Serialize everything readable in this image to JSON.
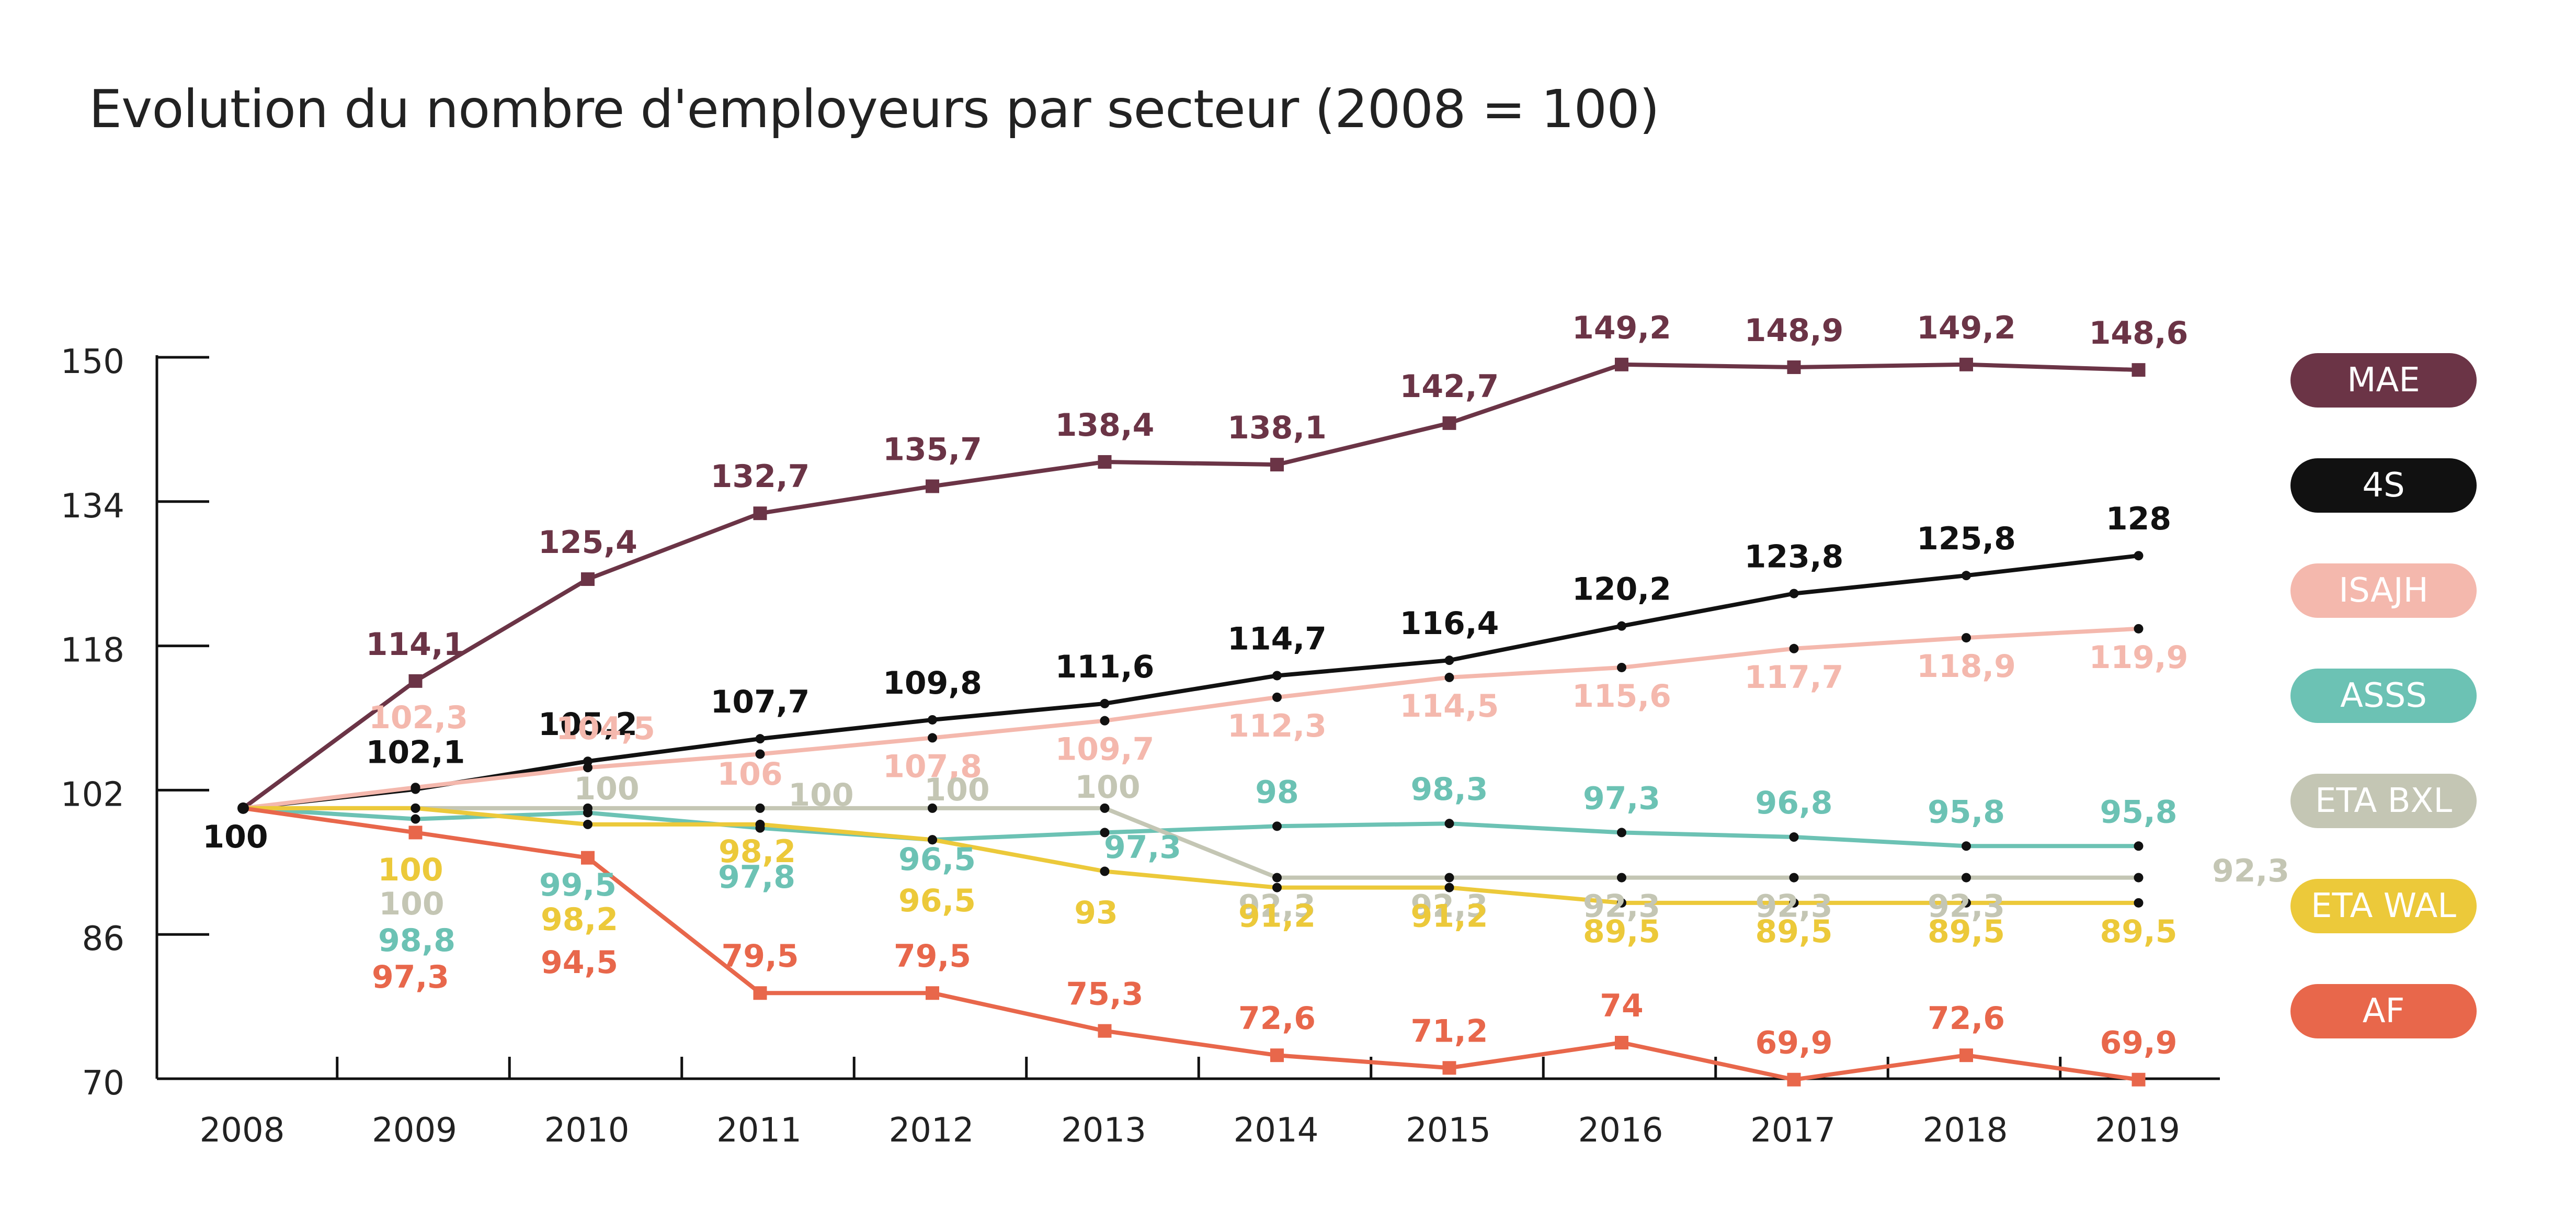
{
  "chart_data": {
    "type": "line",
    "title": "Evolution du nombre d'employeurs par secteur (2008 = 100)",
    "xlabel": "",
    "ylabel": "",
    "x": [
      "2008",
      "2009",
      "2010",
      "2011",
      "2012",
      "2013",
      "2014",
      "2015",
      "2016",
      "2017",
      "2018",
      "2019"
    ],
    "ylim": [
      70,
      150
    ],
    "yticks": [
      "150",
      "134",
      "118",
      "102",
      "86",
      "70"
    ],
    "start_label": "100",
    "grid": false,
    "legend_position": "right",
    "series": [
      {
        "name": "MAE",
        "color": "#6b3446",
        "marker": "square",
        "values": [
          100,
          114.1,
          125.4,
          132.7,
          135.7,
          138.4,
          138.1,
          142.7,
          149.2,
          148.9,
          149.2,
          148.6
        ],
        "labels": [
          "",
          "114,1",
          "125,4",
          "132,7",
          "135,7",
          "138,4",
          "138,1",
          "142,7",
          "149,2",
          "148,9",
          "149,2",
          "148,6"
        ]
      },
      {
        "name": "4S",
        "color": "#111111",
        "marker": "dot",
        "values": [
          100,
          102.1,
          105.2,
          107.7,
          109.8,
          111.6,
          114.7,
          116.4,
          120.2,
          123.8,
          125.8,
          128
        ],
        "labels": [
          "",
          "102,1",
          "105,2",
          "107,7",
          "109,8",
          "111,6",
          "114,7",
          "116,4",
          "120,2",
          "123,8",
          "125,8",
          "128"
        ]
      },
      {
        "name": "ISAJH",
        "color": "#f4b8ad",
        "marker": "dot",
        "values": [
          100,
          102.3,
          104.5,
          106,
          107.8,
          109.7,
          112.3,
          114.5,
          115.6,
          117.7,
          118.9,
          119.9
        ],
        "labels": [
          "",
          "102,3",
          "104,5",
          "106",
          "107,8",
          "109,7",
          "112,3",
          "114,5",
          "115,6",
          "117,7",
          "118,9",
          "119,9"
        ]
      },
      {
        "name": "ASSS",
        "color": "#6cc2b4",
        "marker": "dot",
        "values": [
          100,
          98.8,
          99.5,
          97.8,
          96.5,
          97.3,
          98,
          98.3,
          97.3,
          96.8,
          95.8,
          95.8
        ],
        "labels": [
          "",
          "98,8",
          "99,5",
          "97,8",
          "96,5",
          "97,3",
          "98",
          "98,3",
          "97,3",
          "96,8",
          "95,8",
          "95,8"
        ]
      },
      {
        "name": "ETA BXL",
        "color": "#c4c6b4",
        "marker": "dot",
        "values": [
          100,
          100,
          100,
          100,
          100,
          100,
          92.3,
          92.3,
          92.3,
          92.3,
          92.3,
          92.3
        ],
        "labels": [
          "",
          "100",
          "100",
          "100",
          "100",
          "100",
          "92,3",
          "92,3",
          "92,3",
          "92,3",
          "92,3",
          "92,3"
        ]
      },
      {
        "name": "ETA WAL",
        "color": "#ecc93a",
        "marker": "dot",
        "values": [
          100,
          100,
          98.2,
          98.2,
          96.5,
          93,
          91.2,
          91.2,
          89.5,
          89.5,
          89.5,
          89.5
        ],
        "labels": [
          "",
          "100",
          "98,2",
          "98,2",
          "96,5",
          "93",
          "91,2",
          "91,2",
          "89,5",
          "89,5",
          "89,5",
          "89,5"
        ]
      },
      {
        "name": "AF",
        "color": "#e8674b",
        "marker": "square",
        "values": [
          100,
          97.3,
          94.5,
          79.5,
          79.5,
          75.3,
          72.6,
          71.2,
          74,
          69.9,
          72.6,
          69.9
        ],
        "labels": [
          "",
          "97,3",
          "94,5",
          "79,5",
          "79,5",
          "75,3",
          "72,6",
          "71,2",
          "74",
          "69,9",
          "72,6",
          "69,9"
        ]
      }
    ]
  }
}
